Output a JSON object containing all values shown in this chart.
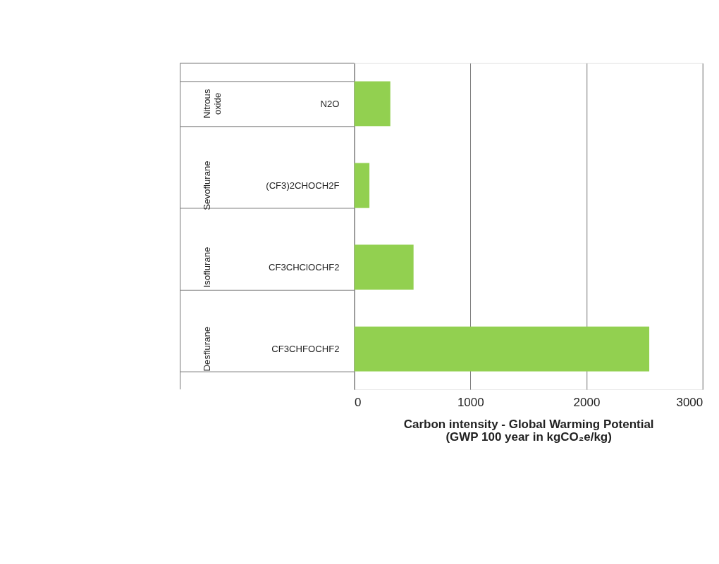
{
  "chart_data": {
    "type": "bar",
    "orientation": "horizontal",
    "categories": [
      "N2O",
      "(CF3)2CHOCH2F",
      "CF3CHClOCHF2",
      "CF3CHFOCHF2"
    ],
    "values": [
      310,
      130,
      510,
      2540
    ],
    "color": "#92d050",
    "xlabel": "Carbon intensity - Global Warming Potential\n(GWP 100 year in kgCO₂e/kg)",
    "xlim": [
      0,
      3000
    ],
    "xticks": [
      0,
      1000,
      2000,
      3000
    ],
    "grid": "x",
    "annotations": [
      "Nitrous oxide",
      "Sevoflurane",
      "Isoflurane",
      "Desflurane"
    ]
  }
}
